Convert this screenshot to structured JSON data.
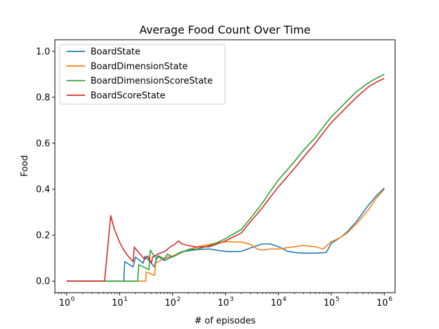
{
  "chart_data": {
    "type": "line",
    "title": "Average Food Count Over Time",
    "xlabel": "# of episodes",
    "ylabel": "Food",
    "xscale": "log",
    "xlim": [
      0.6,
      1600000
    ],
    "ylim": [
      -0.05,
      1.05
    ],
    "grid": false,
    "legend_position": "top-left",
    "x_ticks": [
      {
        "base": "10",
        "exp": "0",
        "value": 1
      },
      {
        "base": "10",
        "exp": "1",
        "value": 10
      },
      {
        "base": "10",
        "exp": "2",
        "value": 100
      },
      {
        "base": "10",
        "exp": "3",
        "value": 1000
      },
      {
        "base": "10",
        "exp": "4",
        "value": 10000
      },
      {
        "base": "10",
        "exp": "5",
        "value": 100000
      },
      {
        "base": "10",
        "exp": "6",
        "value": 1000000
      }
    ],
    "y_ticks": [
      {
        "label": "0.0",
        "value": 0.0
      },
      {
        "label": "0.2",
        "value": 0.2
      },
      {
        "label": "0.4",
        "value": 0.4
      },
      {
        "label": "0.6",
        "value": 0.6
      },
      {
        "label": "0.8",
        "value": 0.8
      },
      {
        "label": "1.0",
        "value": 1.0
      }
    ],
    "series": [
      {
        "name": "BoardState",
        "color": "#1f77b4",
        "points": [
          [
            1,
            0
          ],
          [
            12,
            0
          ],
          [
            12.5,
            0.085
          ],
          [
            18,
            0.062
          ],
          [
            20,
            0.105
          ],
          [
            28,
            0.078
          ],
          [
            30,
            0.108
          ],
          [
            38,
            0.085
          ],
          [
            45,
            0.062
          ],
          [
            52,
            0.11
          ],
          [
            70,
            0.09
          ],
          [
            90,
            0.102
          ],
          [
            120,
            0.118
          ],
          [
            150,
            0.128
          ],
          [
            200,
            0.132
          ],
          [
            300,
            0.138
          ],
          [
            500,
            0.14
          ],
          [
            800,
            0.132
          ],
          [
            1200,
            0.128
          ],
          [
            2000,
            0.13
          ],
          [
            3000,
            0.145
          ],
          [
            5000,
            0.162
          ],
          [
            7000,
            0.162
          ],
          [
            10000,
            0.15
          ],
          [
            15000,
            0.13
          ],
          [
            20000,
            0.125
          ],
          [
            30000,
            0.122
          ],
          [
            50000,
            0.122
          ],
          [
            80000,
            0.125
          ],
          [
            100000,
            0.165
          ],
          [
            150000,
            0.19
          ],
          [
            200000,
            0.215
          ],
          [
            300000,
            0.26
          ],
          [
            500000,
            0.33
          ],
          [
            700000,
            0.37
          ],
          [
            1000000,
            0.405
          ]
        ]
      },
      {
        "name": "BoardDimensionState",
        "color": "#ff7f0e",
        "points": [
          [
            1,
            0
          ],
          [
            31,
            0
          ],
          [
            32,
            0.04
          ],
          [
            46,
            0.025
          ],
          [
            48,
            0.078
          ],
          [
            70,
            0.1
          ],
          [
            100,
            0.11
          ],
          [
            150,
            0.125
          ],
          [
            200,
            0.138
          ],
          [
            300,
            0.15
          ],
          [
            500,
            0.16
          ],
          [
            800,
            0.168
          ],
          [
            1000,
            0.172
          ],
          [
            2000,
            0.17
          ],
          [
            3000,
            0.16
          ],
          [
            4000,
            0.14
          ],
          [
            5000,
            0.135
          ],
          [
            7000,
            0.14
          ],
          [
            10000,
            0.14
          ],
          [
            20000,
            0.15
          ],
          [
            30000,
            0.155
          ],
          [
            50000,
            0.15
          ],
          [
            70000,
            0.14
          ],
          [
            100000,
            0.172
          ],
          [
            150000,
            0.19
          ],
          [
            200000,
            0.21
          ],
          [
            300000,
            0.25
          ],
          [
            500000,
            0.31
          ],
          [
            700000,
            0.36
          ],
          [
            1000000,
            0.4
          ]
        ]
      },
      {
        "name": "BoardDimensionScoreState",
        "color": "#2ca02c",
        "points": [
          [
            1,
            0
          ],
          [
            22,
            0
          ],
          [
            23,
            0.072
          ],
          [
            36,
            0.05
          ],
          [
            38,
            0.135
          ],
          [
            50,
            0.095
          ],
          [
            55,
            0.11
          ],
          [
            70,
            0.095
          ],
          [
            80,
            0.118
          ],
          [
            100,
            0.105
          ],
          [
            150,
            0.125
          ],
          [
            200,
            0.138
          ],
          [
            300,
            0.14
          ],
          [
            500,
            0.155
          ],
          [
            700,
            0.168
          ],
          [
            1000,
            0.185
          ],
          [
            2000,
            0.225
          ],
          [
            3000,
            0.275
          ],
          [
            5000,
            0.34
          ],
          [
            7000,
            0.39
          ],
          [
            10000,
            0.44
          ],
          [
            20000,
            0.52
          ],
          [
            30000,
            0.57
          ],
          [
            50000,
            0.625
          ],
          [
            70000,
            0.67
          ],
          [
            100000,
            0.715
          ],
          [
            200000,
            0.785
          ],
          [
            300000,
            0.825
          ],
          [
            500000,
            0.862
          ],
          [
            700000,
            0.882
          ],
          [
            1000000,
            0.9
          ]
        ]
      },
      {
        "name": "BoardScoreState",
        "color": "#d62728",
        "points": [
          [
            1,
            0
          ],
          [
            5.2,
            0
          ],
          [
            6.8,
            0.285
          ],
          [
            8,
            0.225
          ],
          [
            10,
            0.17
          ],
          [
            12,
            0.135
          ],
          [
            15,
            0.105
          ],
          [
            18,
            0.085
          ],
          [
            19,
            0.148
          ],
          [
            25,
            0.115
          ],
          [
            30,
            0.095
          ],
          [
            34,
            0.11
          ],
          [
            40,
            0.078
          ],
          [
            42,
            0.105
          ],
          [
            55,
            0.12
          ],
          [
            70,
            0.128
          ],
          [
            90,
            0.148
          ],
          [
            110,
            0.16
          ],
          [
            130,
            0.175
          ],
          [
            150,
            0.162
          ],
          [
            200,
            0.155
          ],
          [
            300,
            0.148
          ],
          [
            500,
            0.15
          ],
          [
            700,
            0.162
          ],
          [
            1000,
            0.175
          ],
          [
            2000,
            0.21
          ],
          [
            3000,
            0.26
          ],
          [
            5000,
            0.32
          ],
          [
            7000,
            0.365
          ],
          [
            10000,
            0.41
          ],
          [
            20000,
            0.49
          ],
          [
            30000,
            0.54
          ],
          [
            50000,
            0.6
          ],
          [
            70000,
            0.645
          ],
          [
            100000,
            0.69
          ],
          [
            200000,
            0.76
          ],
          [
            300000,
            0.8
          ],
          [
            500000,
            0.845
          ],
          [
            700000,
            0.865
          ],
          [
            1000000,
            0.882
          ]
        ]
      }
    ]
  }
}
